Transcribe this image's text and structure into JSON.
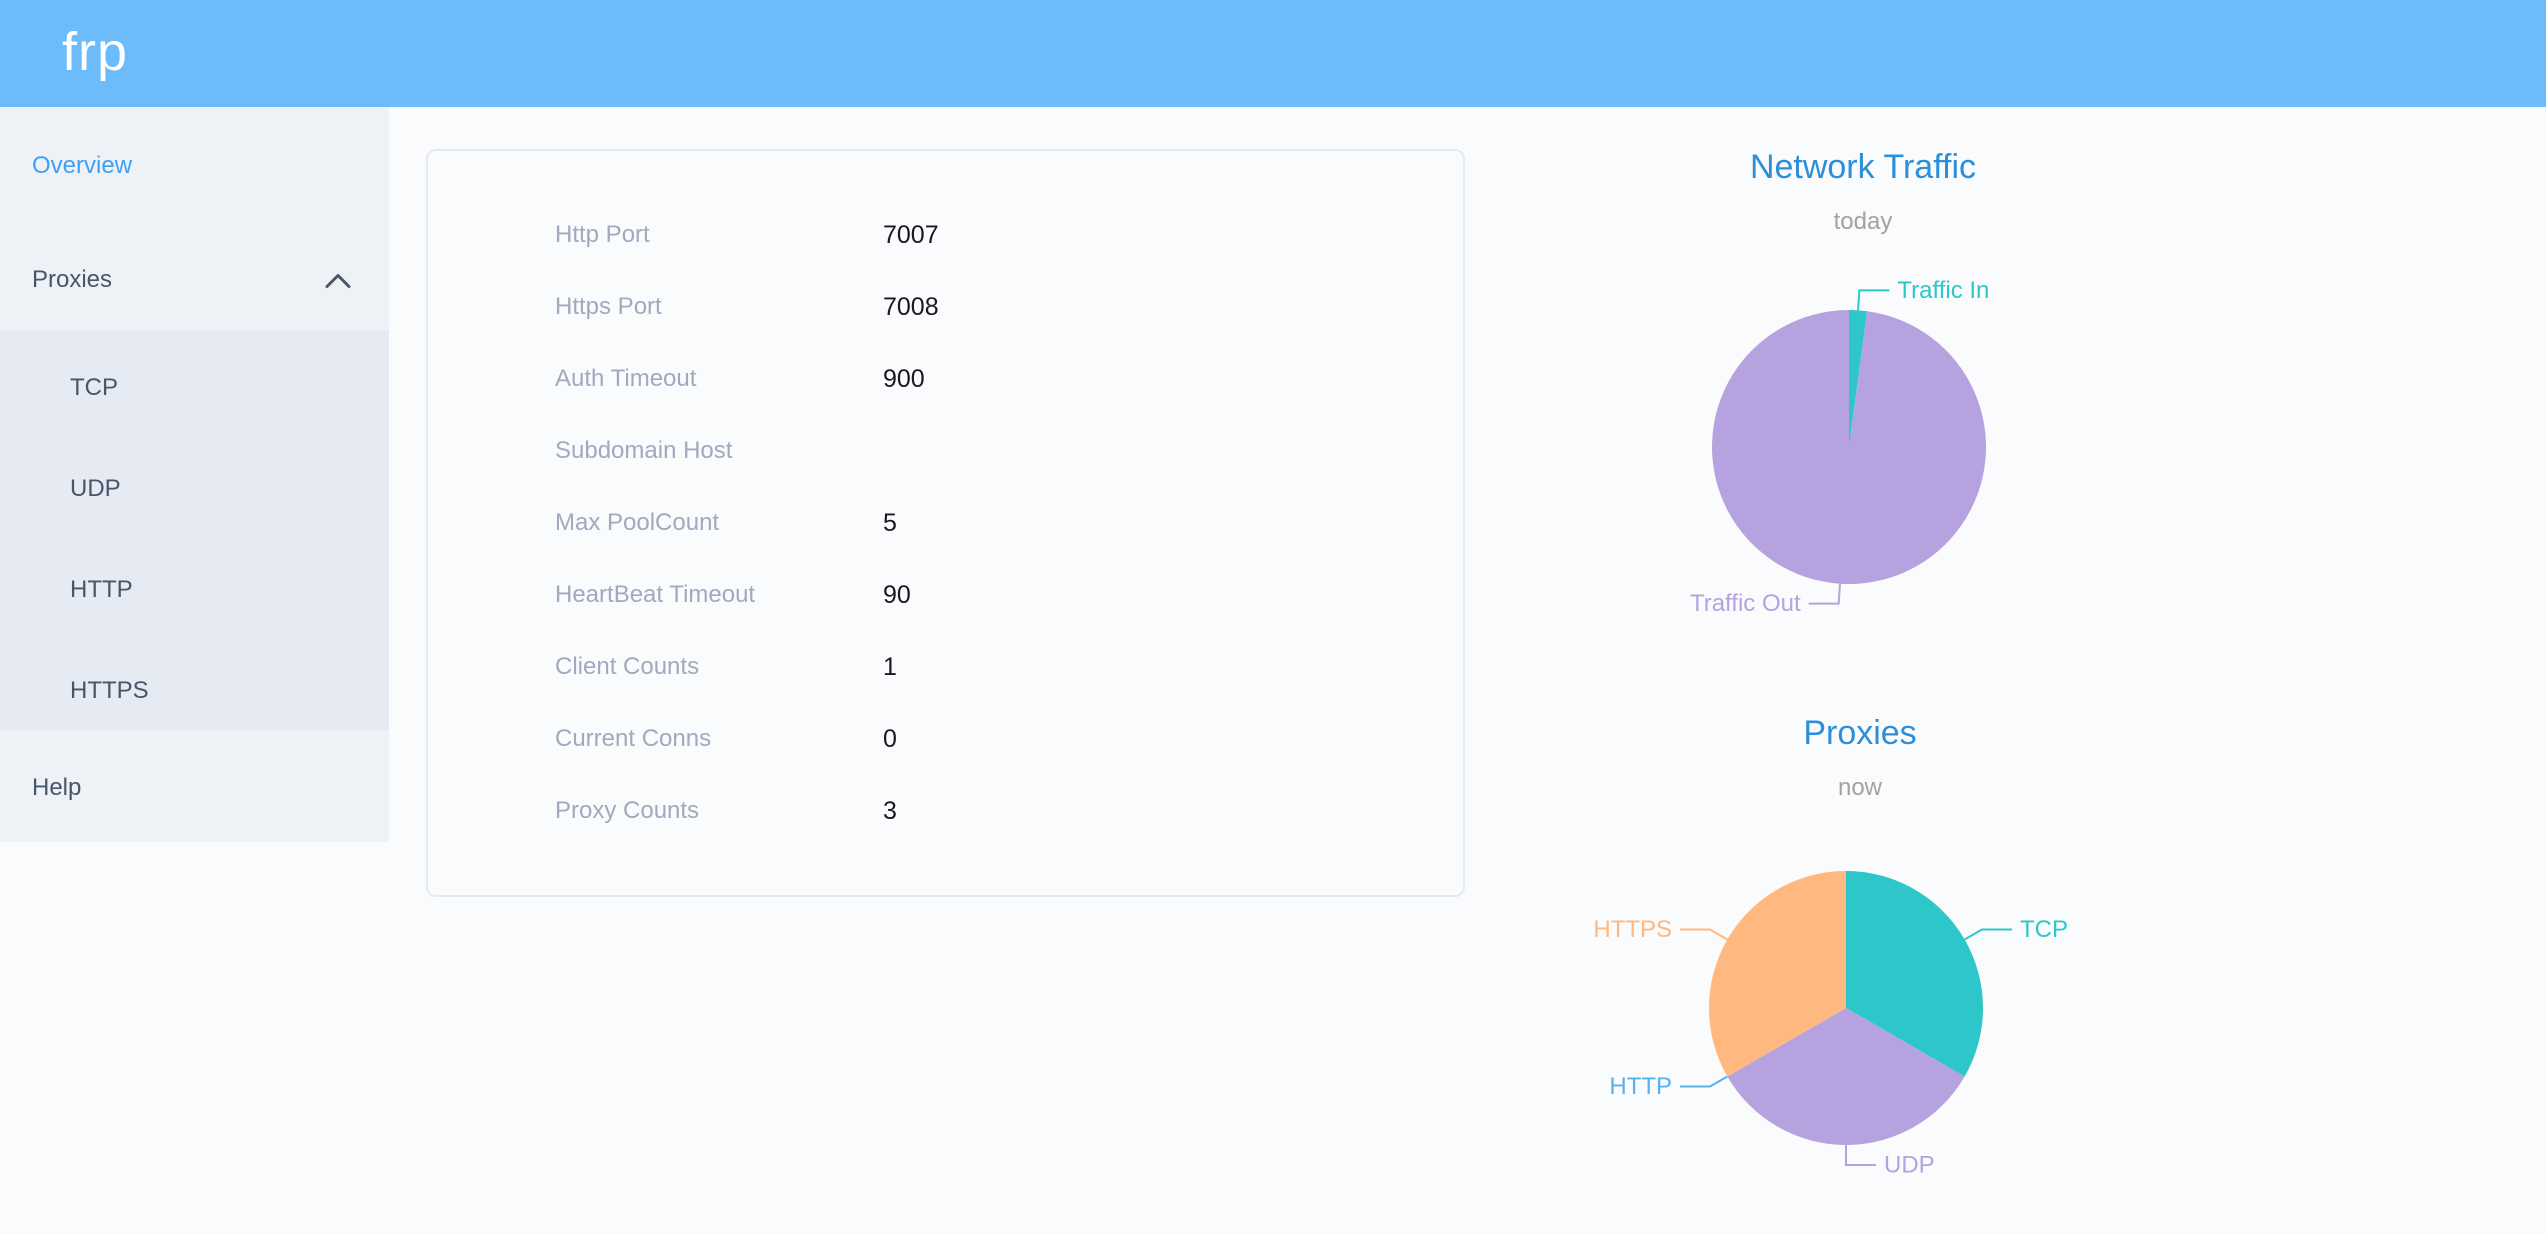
{
  "header": {
    "logo": "frp"
  },
  "sidebar": {
    "overview_label": "Overview",
    "proxies_label": "Proxies",
    "submenu": [
      "TCP",
      "UDP",
      "HTTP",
      "HTTPS"
    ],
    "help_label": "Help"
  },
  "overview_card": {
    "rows": [
      {
        "label": "Http Port",
        "value": "7007"
      },
      {
        "label": "Https Port",
        "value": "7008"
      },
      {
        "label": "Auth Timeout",
        "value": "900"
      },
      {
        "label": "Subdomain Host",
        "value": ""
      },
      {
        "label": "Max PoolCount",
        "value": "5"
      },
      {
        "label": "HeartBeat Timeout",
        "value": "90"
      },
      {
        "label": "Client Counts",
        "value": "1"
      },
      {
        "label": "Current Conns",
        "value": "0"
      },
      {
        "label": "Proxy Counts",
        "value": "3"
      }
    ]
  },
  "chart_data": [
    {
      "type": "pie",
      "title": "Network Traffic",
      "subtitle": "today",
      "label_style": "outside callout labels, no legend",
      "series": [
        {
          "name": "Traffic In",
          "percent": 2.1,
          "color": "#2ec7c9"
        },
        {
          "name": "Traffic Out",
          "percent": 97.9,
          "color": "#b6a2de"
        }
      ]
    },
    {
      "type": "pie",
      "title": "Proxies",
      "subtitle": "now",
      "label_style": "outside callout labels, no legend",
      "series": [
        {
          "name": "TCP",
          "value": 1,
          "color": "#2ec7c9"
        },
        {
          "name": "UDP",
          "value": 1,
          "color": "#b6a2de"
        },
        {
          "name": "HTTP",
          "value": 0,
          "color": "#5ab1ef"
        },
        {
          "name": "HTTPS",
          "value": 1,
          "color": "#ffb980"
        }
      ]
    }
  ],
  "colors": {
    "header_bg": "#6cbbfa",
    "page_bg": "#fafbfc",
    "sidebar_bg": "#eef1f6",
    "submenu_bg": "#e6eaf2",
    "sidebar_text": "#475669",
    "active_link": "#3da0f5",
    "card_border": "#e7e9f2",
    "label_gray": "#a0aabe",
    "value_dark": "#17191e",
    "chart_title_blue": "#2b90d9",
    "subtitle_gray": "#a2a2a2"
  }
}
